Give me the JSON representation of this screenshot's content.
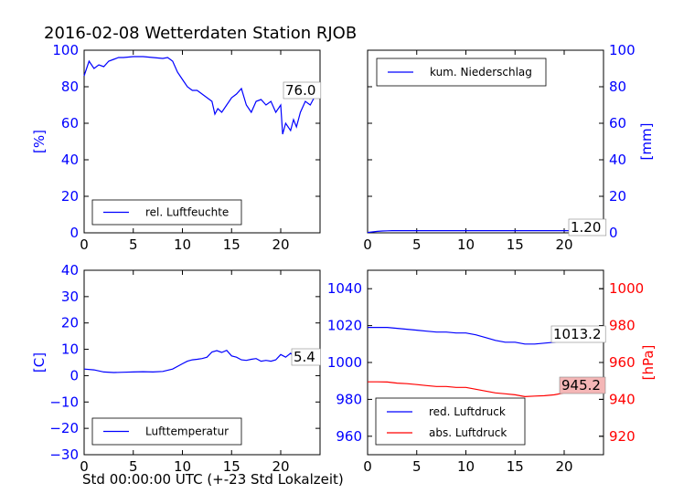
{
  "figure": {
    "title": "2016-02-08 Wetterdaten Station RJOB",
    "xcaption": "Std 00:00:00 UTC (+-23 Std Lokalzeit)"
  },
  "colors": {
    "blue": "#0000ff",
    "red": "#ff0000",
    "black": "#000000",
    "annot_red_bg": "#f4b6b6"
  },
  "chart_data": [
    {
      "id": "humidity",
      "type": "line",
      "xlim": [
        0,
        24
      ],
      "ylim": [
        0,
        100
      ],
      "xticks": [
        "0",
        "5",
        "10",
        "15",
        "20"
      ],
      "yticks": [
        "0",
        "20",
        "40",
        "60",
        "80",
        "100"
      ],
      "ylabel": "[%]",
      "ylabel_side": "left",
      "tick_color": "#0000ff",
      "legend": "bottom-left",
      "series": [
        {
          "name": "rel. Luftfeuchte",
          "color": "#0000ff",
          "x": [
            0,
            0.5,
            1,
            1.5,
            2,
            2.5,
            3,
            3.5,
            4,
            5,
            6,
            7,
            8,
            8.5,
            9,
            9.5,
            10,
            10.5,
            11,
            11.5,
            12,
            12.5,
            13,
            13.3,
            13.6,
            14,
            14.5,
            15,
            15.5,
            16,
            16.5,
            17,
            17.5,
            18,
            18.5,
            19,
            19.5,
            20,
            20.2,
            20.5,
            21,
            21.3,
            21.6,
            22,
            22.5,
            23,
            23.5,
            24
          ],
          "y": [
            86,
            94,
            90,
            92,
            91,
            94,
            95,
            96,
            96,
            96.5,
            96.5,
            96,
            95.5,
            96,
            94,
            88,
            84,
            80,
            78,
            78,
            76,
            74,
            72,
            65,
            68,
            66,
            70,
            74,
            76,
            79,
            70,
            66,
            72,
            73,
            70,
            72,
            66,
            70,
            54,
            60,
            56,
            62,
            58,
            66,
            72,
            70,
            75,
            76
          ]
        }
      ],
      "annotations": [
        {
          "text": "76.0",
          "style": "box"
        }
      ]
    },
    {
      "id": "precip",
      "type": "line",
      "xlim": [
        0,
        24
      ],
      "ylim": [
        0,
        100
      ],
      "xticks": [
        "0",
        "5",
        "10",
        "15",
        "20"
      ],
      "yticks": [
        "0",
        "20",
        "40",
        "60",
        "80",
        "100"
      ],
      "ylabel": "[mm]",
      "ylabel_side": "right",
      "tick_color": "#0000ff",
      "legend": "top-left",
      "series": [
        {
          "name": "kum. Niederschlag",
          "color": "#0000ff",
          "x": [
            0,
            0.5,
            1,
            1.5,
            2,
            2.5,
            3,
            24
          ],
          "y": [
            0.2,
            0.5,
            0.8,
            1.0,
            1.1,
            1.2,
            1.2,
            1.2
          ]
        }
      ],
      "annotations": [
        {
          "text": "1.20",
          "style": "box"
        }
      ]
    },
    {
      "id": "temperature",
      "type": "line",
      "xlim": [
        0,
        24
      ],
      "ylim": [
        -30,
        40
      ],
      "xticks": [
        "0",
        "5",
        "10",
        "15",
        "20"
      ],
      "yticks": [
        "−30",
        "−20",
        "−10",
        "0",
        "10",
        "20",
        "30",
        "40"
      ],
      "ylabel": "[C]",
      "ylabel_side": "left",
      "tick_color": "#0000ff",
      "legend": "bottom-left",
      "series": [
        {
          "name": "Lufttemperatur",
          "color": "#0000ff",
          "x": [
            0,
            1,
            2,
            3,
            4,
            5,
            6,
            7,
            8,
            9,
            10,
            10.5,
            11,
            11.5,
            12,
            12.5,
            13,
            13.5,
            14,
            14.5,
            15,
            15.5,
            16,
            16.5,
            17,
            17.5,
            18,
            18.5,
            19,
            19.5,
            20,
            20.5,
            21,
            21.5,
            22,
            22.5,
            23,
            23.5,
            24
          ],
          "y": [
            2.5,
            2.2,
            1.4,
            1.2,
            1.3,
            1.4,
            1.5,
            1.4,
            1.6,
            2.5,
            4.5,
            5.5,
            6,
            6.2,
            6.5,
            7,
            9,
            9.5,
            8.8,
            9.6,
            7.5,
            7,
            6,
            5.8,
            6.2,
            6.5,
            5.5,
            5.8,
            5.5,
            6,
            8,
            7,
            8.5,
            7,
            6.5,
            7.5,
            6,
            5.8,
            5.4
          ]
        }
      ],
      "annotations": [
        {
          "text": "5.4",
          "style": "box"
        }
      ]
    },
    {
      "id": "pressure",
      "type": "line",
      "xlim": [
        0,
        24
      ],
      "ylim": [
        950,
        1050
      ],
      "ylim_right": [
        910,
        1010
      ],
      "xticks": [
        "0",
        "5",
        "10",
        "15",
        "20"
      ],
      "yticks": [
        "960",
        "980",
        "1000",
        "1020",
        "1040"
      ],
      "yticks_right": [
        "920",
        "940",
        "960",
        "980",
        "1000"
      ],
      "ylabel_right": "[hPa]",
      "tick_color": "#0000ff",
      "tick_color_right": "#ff0000",
      "legend": "bottom-left",
      "series": [
        {
          "name": "red. Luftdruck",
          "axis": "left",
          "color": "#0000ff",
          "x": [
            0,
            1,
            2,
            3,
            4,
            5,
            6,
            7,
            8,
            9,
            10,
            11,
            12,
            13,
            14,
            15,
            16,
            17,
            18,
            19,
            20,
            21,
            22,
            23,
            24
          ],
          "y": [
            1019,
            1019,
            1019,
            1018.5,
            1018,
            1017.5,
            1017,
            1016.5,
            1016.5,
            1016,
            1016,
            1015,
            1013.5,
            1012,
            1011,
            1011,
            1010,
            1010,
            1010.5,
            1011,
            1012,
            1012.5,
            1013,
            1013.2,
            1013.2
          ]
        },
        {
          "name": "abs. Luftdruck",
          "axis": "right",
          "color": "#ff0000",
          "x": [
            0,
            1,
            2,
            3,
            4,
            5,
            6,
            7,
            8,
            9,
            10,
            11,
            12,
            13,
            14,
            15,
            16,
            17,
            18,
            19,
            20,
            21,
            22,
            23,
            24
          ],
          "y": [
            949.5,
            949.5,
            949.4,
            948.8,
            948.5,
            948,
            947.5,
            947,
            947,
            946.5,
            946.5,
            945.5,
            944.5,
            943.5,
            943,
            942.5,
            941.5,
            941.8,
            942,
            942.5,
            943.5,
            944,
            944.5,
            945,
            945.2
          ]
        }
      ],
      "annotations": [
        {
          "text": "1013.2",
          "style": "box",
          "series": 0
        },
        {
          "text": "945.2",
          "style": "redbox",
          "series": 1
        }
      ]
    }
  ]
}
